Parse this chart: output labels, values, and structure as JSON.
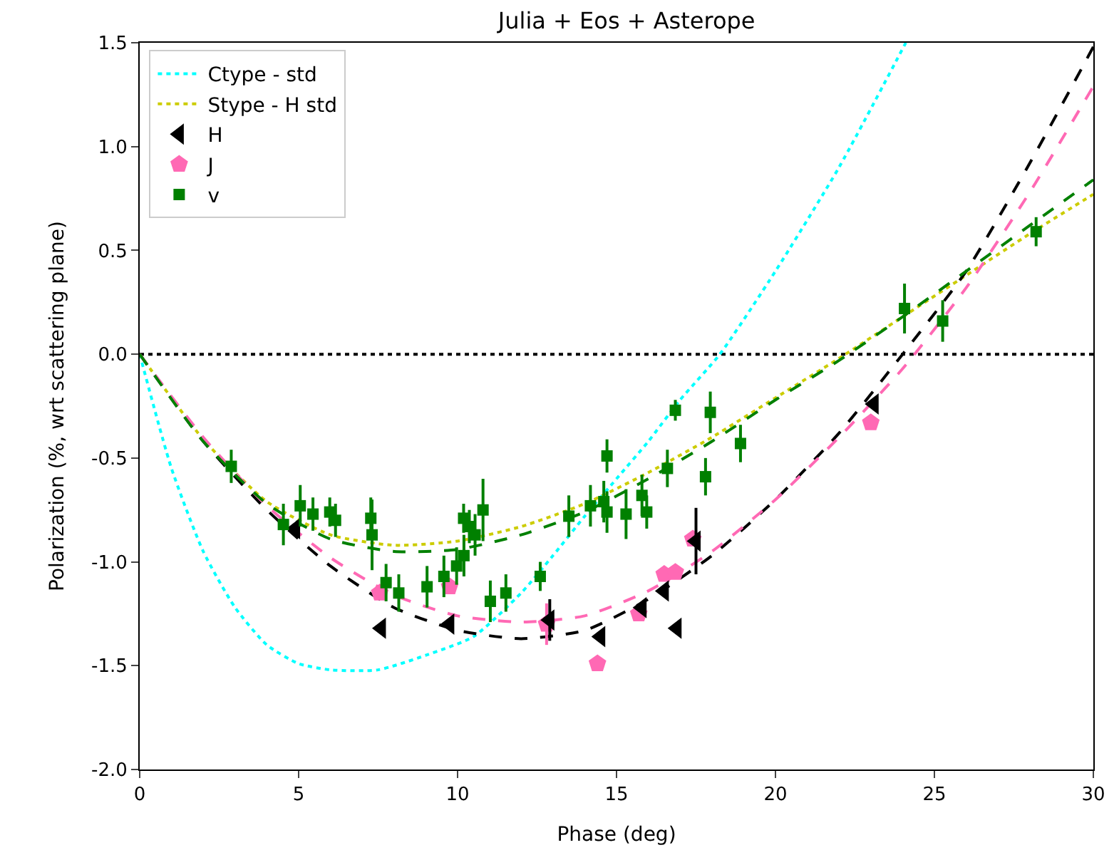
{
  "chart_data": {
    "type": "scatter",
    "title": "Julia + Eos + Asterope",
    "xlabel": "Phase (deg)",
    "ylabel": "Polarization (%, wrt scattering plane)",
    "xlim": [
      0,
      30
    ],
    "xticks": [
      0,
      5,
      10,
      15,
      20,
      25,
      30
    ],
    "ylim": [
      -2.0,
      1.5
    ],
    "yticks": [
      {
        "value": -2,
        "label": "-2.0"
      },
      {
        "value": -1.5,
        "label": "-1.5"
      },
      {
        "value": -1,
        "label": "-1.0"
      },
      {
        "value": -0.5,
        "label": "-0.5"
      },
      {
        "value": 0,
        "label": "0.0"
      },
      {
        "value": 0.5,
        "label": "0.5"
      },
      {
        "value": 1,
        "label": "1.0"
      },
      {
        "value": 1.5,
        "label": "1.5"
      }
    ],
    "grid": false,
    "legend": "top left",
    "ref_lines": [
      {
        "axis": "y",
        "value": 0,
        "color": "#000000",
        "line_style": "dotted"
      }
    ],
    "series": [
      {
        "name": "Ctype - std",
        "type": "line",
        "color": "#00ffff",
        "line_style": "dotted",
        "x": [
          0,
          1,
          2,
          3,
          4,
          5,
          6,
          7.5,
          9,
          10.5,
          12,
          13,
          14,
          15,
          16,
          17,
          18.25,
          20,
          22,
          24.1
        ],
        "values": [
          0,
          -0.55,
          -0.95,
          -1.22,
          -1.4,
          -1.49,
          -1.52,
          -1.52,
          -1.45,
          -1.36,
          -1.15,
          -0.97,
          -0.78,
          -0.6,
          -0.42,
          -0.22,
          0,
          0.4,
          0.9,
          1.5
        ]
      },
      {
        "name": "Stype - H std",
        "type": "line",
        "color": "#cccc00",
        "line_style": "dotted",
        "x": [
          0,
          2,
          4,
          6,
          8,
          10,
          12,
          14,
          16,
          18,
          20,
          22,
          24,
          26,
          28,
          30
        ],
        "values": [
          0,
          -0.41,
          -0.71,
          -0.87,
          -0.92,
          -0.9,
          -0.83,
          -0.72,
          -0.57,
          -0.4,
          -0.21,
          -0.02,
          0.18,
          0.38,
          0.58,
          0.77
        ]
      },
      {
        "type": "line",
        "color": "#000000",
        "line_style": "dashed",
        "x": [
          0,
          2,
          4,
          6,
          8,
          10,
          12,
          14,
          16,
          18,
          20,
          22,
          24,
          26,
          28,
          30
        ],
        "values": [
          0,
          -0.42,
          -0.75,
          -1.02,
          -1.22,
          -1.33,
          -1.37,
          -1.33,
          -1.18,
          -0.97,
          -0.7,
          -0.38,
          0,
          0.4,
          0.92,
          1.48
        ]
      },
      {
        "type": "line",
        "color": "#ff69b4",
        "line_style": "dashed",
        "x": [
          0,
          2,
          4,
          6,
          8,
          10,
          12,
          14,
          16,
          18,
          20,
          22,
          24,
          26,
          28,
          30
        ],
        "values": [
          0,
          -0.4,
          -0.73,
          -0.98,
          -1.16,
          -1.26,
          -1.29,
          -1.26,
          -1.14,
          -0.95,
          -0.7,
          -0.4,
          -0.07,
          0.32,
          0.78,
          1.29
        ]
      },
      {
        "type": "line",
        "color": "#008000",
        "line_style": "dashed",
        "x": [
          0,
          2,
          4,
          6,
          8,
          10,
          12,
          14,
          16,
          18,
          20,
          22,
          24,
          26,
          28,
          30
        ],
        "values": [
          0,
          -0.42,
          -0.72,
          -0.89,
          -0.95,
          -0.94,
          -0.87,
          -0.76,
          -0.6,
          -0.42,
          -0.22,
          -0.03,
          0.18,
          0.4,
          0.62,
          0.84
        ]
      },
      {
        "name": "H",
        "marker": "triangle-left",
        "color": "#000000",
        "x": [
          4.9,
          7.6,
          9.75,
          12.9,
          14.5,
          15.8,
          16.5,
          16.9,
          17.5,
          23.1
        ],
        "values": [
          -0.84,
          -1.32,
          -1.3,
          -1.28,
          -1.36,
          -1.22,
          -1.14,
          -1.32,
          -0.9,
          -0.24
        ],
        "errors": [
          null,
          null,
          null,
          0.1,
          null,
          null,
          null,
          null,
          0.16,
          null
        ]
      },
      {
        "name": "J",
        "color": "#ff69b4",
        "x": [
          7.55,
          9.75,
          12.8,
          14.4,
          15.7,
          16.5,
          16.85,
          17.4,
          23.0
        ],
        "values": [
          -1.15,
          -1.12,
          -1.3,
          -1.49,
          -1.25,
          -1.06,
          -1.05,
          -0.89,
          -0.33
        ],
        "errors": [
          null,
          null,
          0.1,
          null,
          null,
          null,
          null,
          null,
          null
        ]
      },
      {
        "name": "v",
        "marker": "square",
        "color": "#008000",
        "x": [
          2.88,
          4.52,
          5.05,
          5.45,
          5.98,
          6.16,
          7.27,
          7.31,
          7.75,
          8.15,
          9.04,
          9.57,
          9.97,
          10.2,
          10.19,
          10.37,
          10.55,
          10.8,
          11.03,
          11.52,
          12.6,
          13.5,
          14.18,
          14.6,
          14.7,
          14.7,
          15.3,
          15.8,
          15.95,
          16.6,
          16.85,
          17.8,
          17.95,
          18.9,
          24.06,
          25.26,
          28.2
        ],
        "values": [
          -0.54,
          -0.82,
          -0.73,
          -0.77,
          -0.76,
          -0.8,
          -0.79,
          -0.87,
          -1.1,
          -1.15,
          -1.12,
          -1.07,
          -1.02,
          -0.97,
          -0.79,
          -0.83,
          -0.87,
          -0.75,
          -1.19,
          -1.15,
          -1.07,
          -0.78,
          -0.73,
          -0.71,
          -0.76,
          -0.49,
          -0.77,
          -0.68,
          -0.76,
          -0.55,
          -0.27,
          -0.59,
          -0.28,
          -0.43,
          0.22,
          0.16,
          0.59
        ],
        "errors": [
          0.08,
          0.1,
          0.1,
          0.08,
          0.07,
          0.08,
          0.1,
          0.17,
          0.09,
          0.09,
          0.1,
          0.1,
          0.09,
          0.1,
          0.07,
          0.08,
          0.1,
          0.15,
          0.1,
          0.09,
          0.07,
          0.1,
          0.1,
          0.1,
          0.1,
          0.08,
          0.12,
          0.1,
          0.08,
          0.09,
          0.05,
          0.09,
          0.1,
          0.09,
          0.12,
          0.1,
          0.07
        ]
      }
    ]
  }
}
